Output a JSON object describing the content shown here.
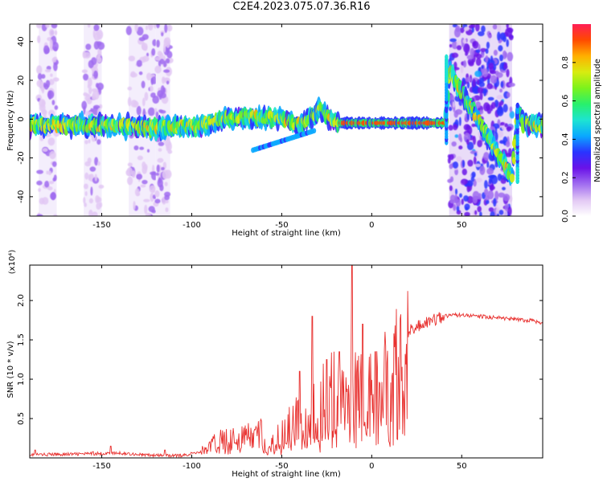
{
  "title": "C2E4.2023.075.07.36.R16",
  "colors": {
    "snr_line": "#e8312f",
    "axis": "#000000",
    "colormap": [
      "#ffffff",
      "#e2c8f4",
      "#a06cf0",
      "#6a12e8",
      "#2a34ff",
      "#0aa8ff",
      "#1de4d2",
      "#28f06c",
      "#7cf21c",
      "#d8ec10",
      "#ffb000",
      "#ff4a00",
      "#ff1f56"
    ]
  },
  "chart_data": [
    {
      "type": "heatmap",
      "title": "",
      "xlabel": "Height of straight line (km)",
      "ylabel": "Frequency (Hz)",
      "xlim": [
        -190,
        95
      ],
      "ylim": [
        -50,
        49
      ],
      "xticks": [
        -150,
        -100,
        -50,
        0,
        50
      ],
      "xtick_labels": [
        "-150",
        "-100",
        "-50",
        "0",
        "50"
      ],
      "yticks": [
        -40,
        -20,
        0,
        20,
        40
      ],
      "ytick_labels": [
        "-40",
        "-20",
        "0",
        "20",
        "40"
      ],
      "colorbar": {
        "label": "Normalized spectral amplitude",
        "range": [
          0,
          1
        ],
        "ticks": [
          0.0,
          0.2,
          0.4,
          0.6,
          0.8
        ],
        "tick_labels": [
          "0.0",
          "0.2",
          "0.4",
          "0.6",
          "0.8"
        ]
      },
      "ridge": {
        "x": [
          -190,
          -170,
          -150,
          -130,
          -110,
          -100,
          -90,
          -80,
          -70,
          -60,
          -50,
          -40,
          -32,
          -28,
          -24,
          -18,
          -12,
          -5,
          0,
          10,
          20,
          30,
          38,
          41,
          43,
          78,
          81,
          85,
          90,
          95
        ],
        "y": [
          -3,
          -3,
          -3,
          -4,
          -4,
          -4,
          -2,
          0,
          1,
          1,
          0,
          -3,
          3,
          5,
          0,
          -2,
          -2,
          -2,
          -2,
          -2,
          -2,
          -2,
          -2,
          -2,
          25,
          -30,
          4,
          -3,
          -3,
          -3
        ]
      },
      "noise_bands": [
        [
          -185,
          -175
        ],
        [
          -160,
          -150
        ],
        [
          -135,
          -120
        ],
        [
          -120,
          -112
        ],
        [
          43,
          78
        ]
      ],
      "grid": false
    },
    {
      "type": "line",
      "title": "",
      "xlabel": "Height of straight line (km)",
      "ylabel": "SNR (10 * v/v)",
      "y_multiplier": "(x10⁴)",
      "xlim": [
        -190,
        95
      ],
      "ylim": [
        0,
        2.45
      ],
      "xticks": [
        -150,
        -100,
        -50,
        0,
        50
      ],
      "xtick_labels": [
        "-150",
        "-100",
        "-50",
        "0",
        "50"
      ],
      "yticks": [
        0.5,
        1.0,
        1.5,
        2.0
      ],
      "ytick_labels": [
        "0.5",
        "1.0",
        "1.5",
        "2.0"
      ],
      "trend": {
        "x": [
          -190,
          -160,
          -140,
          -120,
          -105,
          -95,
          -85,
          -70,
          -55,
          -45,
          -35,
          -25,
          -15,
          -10,
          -5,
          0,
          5,
          10,
          15,
          20,
          30,
          40,
          50,
          60,
          70,
          80,
          90,
          95
        ],
        "y": [
          0.04,
          0.05,
          0.06,
          0.03,
          0.03,
          0.08,
          0.2,
          0.25,
          0.3,
          0.4,
          0.55,
          0.7,
          0.9,
          1.0,
          1.1,
          1.2,
          1.3,
          1.35,
          1.45,
          1.6,
          1.72,
          1.8,
          1.82,
          1.8,
          1.78,
          1.76,
          1.74,
          1.7
        ]
      },
      "peaks": [
        {
          "x": -187,
          "y": 0.1
        },
        {
          "x": -155,
          "y": 0.08
        },
        {
          "x": -145,
          "y": 0.15
        },
        {
          "x": -115,
          "y": 0.1
        },
        {
          "x": -40,
          "y": 1.1
        },
        {
          "x": -33,
          "y": 1.8
        },
        {
          "x": -25,
          "y": 1.25
        },
        {
          "x": -18,
          "y": 1.35
        },
        {
          "x": -11,
          "y": 2.45
        },
        {
          "x": -5,
          "y": 1.7
        },
        {
          "x": 2,
          "y": 1.35
        }
      ],
      "grid": false
    }
  ]
}
